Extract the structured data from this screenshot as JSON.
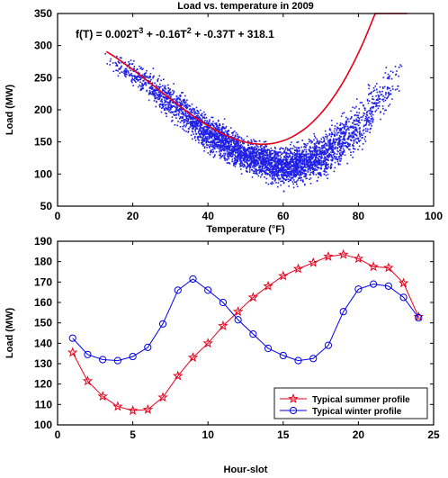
{
  "chart_data": [
    {
      "type": "scatter",
      "title": "Load vs. temperature in 2009",
      "xlabel": "Temperature (°F)",
      "ylabel": "Load (MW)",
      "xlim": [
        0,
        100
      ],
      "ylim": [
        50,
        350
      ],
      "xticks": [
        0,
        20,
        40,
        60,
        80,
        100
      ],
      "yticks": [
        50,
        100,
        150,
        200,
        250,
        300,
        350
      ],
      "equation_text": "f(T) = 0.002T³ + -0.16T² + -0.37T + 318.1",
      "fit": {
        "coefficients": [
          0.002,
          -0.16,
          -0.37,
          318.1
        ],
        "x_range": [
          13,
          93
        ],
        "color": "#e3001b"
      },
      "points_color": "#1f1fe6",
      "scatter_envelope": [
        {
          "x": 12,
          "low": 265,
          "high": 298
        },
        {
          "x": 20,
          "low": 230,
          "high": 285
        },
        {
          "x": 30,
          "low": 175,
          "high": 250
        },
        {
          "x": 40,
          "low": 125,
          "high": 205
        },
        {
          "x": 50,
          "low": 95,
          "high": 165
        },
        {
          "x": 60,
          "low": 72,
          "high": 150
        },
        {
          "x": 70,
          "low": 78,
          "high": 175
        },
        {
          "x": 80,
          "low": 125,
          "high": 230
        },
        {
          "x": 85,
          "low": 160,
          "high": 265
        },
        {
          "x": 92,
          "low": 230,
          "high": 300
        }
      ]
    },
    {
      "type": "line",
      "xlabel": "Hour-slot",
      "ylabel": "Load (MW)",
      "xlim": [
        0,
        25
      ],
      "ylim": [
        100,
        190
      ],
      "xticks": [
        0,
        5,
        10,
        15,
        20,
        25
      ],
      "yticks": [
        100,
        110,
        120,
        130,
        140,
        150,
        160,
        170,
        180,
        190
      ],
      "legend_position": "bottom-right",
      "x": [
        1,
        2,
        3,
        4,
        5,
        6,
        7,
        8,
        9,
        10,
        11,
        12,
        13,
        14,
        15,
        16,
        17,
        18,
        19,
        20,
        21,
        22,
        23,
        24
      ],
      "series": [
        {
          "name": "Typical summer profile",
          "color": "#e3001b",
          "marker": "star",
          "values": [
            135.5,
            121.5,
            114,
            109,
            107,
            107.5,
            113.5,
            124,
            133,
            140,
            148.5,
            155.5,
            162.5,
            168,
            173,
            176.5,
            179.5,
            182.5,
            183.5,
            181.5,
            177.5,
            177,
            169.5,
            153
          ]
        },
        {
          "name": "Typical winter profile",
          "color": "#0000e6",
          "marker": "circle",
          "values": [
            142.5,
            134.5,
            132,
            131.5,
            133.5,
            138,
            149.5,
            166,
            171.5,
            166,
            160,
            151.5,
            144.5,
            137.5,
            134,
            131.5,
            132.5,
            139,
            155.5,
            166.5,
            169,
            168,
            162.5,
            152.5
          ]
        }
      ]
    }
  ]
}
